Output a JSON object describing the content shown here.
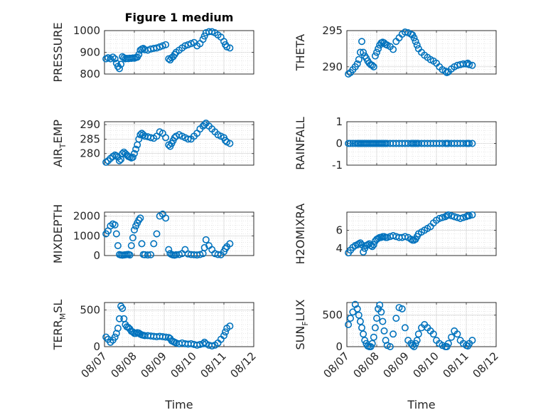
{
  "figure": {
    "title": "Figure 1 medium",
    "marker_color": "#0072BD",
    "x_tick_labels": [
      "08/07",
      "08/08",
      "08/09",
      "08/10",
      "08/11",
      "08/12"
    ],
    "x_axis_label": "Time"
  },
  "chart_data": [
    {
      "type": "scatter",
      "ylabel": "PRESSURE",
      "ylabel_main": "PRESSURE",
      "ylabel_sub": "",
      "ylabel_rest": "",
      "xlim": [
        0,
        5
      ],
      "ylim": [
        800,
        1000
      ],
      "yticks": [
        800,
        900,
        1000
      ],
      "grid": true,
      "minor_grid": true,
      "x_tick_labels_shown": false,
      "x": [
        0.05,
        0.12,
        0.2,
        0.28,
        0.35,
        0.4,
        0.45,
        0.5,
        0.55,
        0.6,
        0.65,
        0.7,
        0.75,
        0.8,
        0.85,
        0.9,
        0.95,
        1.0,
        1.05,
        1.1,
        1.15,
        1.2,
        1.25,
        1.3,
        1.35,
        1.45,
        1.55,
        1.65,
        1.75,
        1.85,
        1.95,
        2.05,
        2.15,
        2.2,
        2.25,
        2.3,
        2.35,
        2.4,
        2.5,
        2.6,
        2.7,
        2.8,
        2.9,
        3.0,
        3.1,
        3.2,
        3.3,
        3.35,
        3.4,
        3.5,
        3.6,
        3.7,
        3.8,
        3.9,
        4.0,
        4.05,
        4.1,
        4.2
      ],
      "y": [
        870,
        875,
        870,
        878,
        870,
        850,
        835,
        825,
        845,
        880,
        875,
        870,
        872,
        871,
        873,
        872,
        874,
        873,
        876,
        878,
        890,
        910,
        915,
        918,
        912,
        910,
        915,
        918,
        920,
        925,
        930,
        935,
        870,
        865,
        875,
        880,
        890,
        900,
        910,
        920,
        930,
        935,
        940,
        945,
        930,
        940,
        960,
        975,
        990,
        995,
        995,
        990,
        980,
        970,
        950,
        935,
        925,
        920
      ]
    },
    {
      "type": "scatter",
      "ylabel": "THETA",
      "ylabel_main": "THETA",
      "ylabel_sub": "",
      "ylabel_rest": "",
      "xlim": [
        0,
        5
      ],
      "ylim": [
        289,
        295
      ],
      "yticks": [
        290,
        295
      ],
      "grid": true,
      "minor_grid": true,
      "x_tick_labels_shown": false,
      "x": [
        0.05,
        0.12,
        0.2,
        0.28,
        0.35,
        0.4,
        0.45,
        0.5,
        0.55,
        0.6,
        0.65,
        0.7,
        0.75,
        0.8,
        0.85,
        0.9,
        0.95,
        1.0,
        1.05,
        1.1,
        1.15,
        1.2,
        1.25,
        1.3,
        1.35,
        1.45,
        1.55,
        1.65,
        1.75,
        1.85,
        1.95,
        2.05,
        2.15,
        2.2,
        2.25,
        2.3,
        2.35,
        2.4,
        2.5,
        2.6,
        2.7,
        2.8,
        2.9,
        3.0,
        3.1,
        3.2,
        3.3,
        3.35,
        3.4,
        3.5,
        3.6,
        3.7,
        3.8,
        3.9,
        4.0,
        4.05,
        4.1,
        4.2
      ],
      "y": [
        289,
        289.2,
        289.6,
        290,
        290.4,
        291,
        292,
        293.5,
        292,
        291.5,
        291.2,
        290.8,
        290.5,
        290.3,
        290.2,
        290,
        291.5,
        292,
        292.5,
        293,
        293.3,
        293.4,
        293.3,
        293.1,
        293,
        292.8,
        292.4,
        293.5,
        294,
        294.5,
        294.8,
        294.7,
        294.5,
        294.4,
        294,
        293.5,
        293,
        292.5,
        292,
        291.6,
        291.3,
        291,
        290.8,
        290.5,
        290,
        289.6,
        289.4,
        289.2,
        289.3,
        289.7,
        290,
        290.2,
        290.3,
        290.4,
        290.4,
        290.5,
        290.3,
        290.2
      ]
    },
    {
      "type": "scatter",
      "ylabel": "AIR_TEMP",
      "ylabel_main": "AIR",
      "ylabel_sub": "T",
      "ylabel_rest": "EMP",
      "xlim": [
        0,
        5
      ],
      "ylim": [
        276,
        291
      ],
      "yticks": [
        280,
        285,
        290
      ],
      "grid": true,
      "minor_grid": true,
      "x_tick_labels_shown": false,
      "x": [
        0.05,
        0.12,
        0.2,
        0.28,
        0.35,
        0.4,
        0.45,
        0.5,
        0.55,
        0.6,
        0.65,
        0.7,
        0.75,
        0.8,
        0.85,
        0.9,
        0.95,
        1.0,
        1.05,
        1.1,
        1.15,
        1.2,
        1.25,
        1.3,
        1.35,
        1.45,
        1.55,
        1.65,
        1.75,
        1.85,
        1.95,
        2.05,
        2.15,
        2.2,
        2.25,
        2.3,
        2.35,
        2.4,
        2.5,
        2.6,
        2.7,
        2.8,
        2.9,
        3.0,
        3.1,
        3.2,
        3.3,
        3.35,
        3.4,
        3.5,
        3.6,
        3.7,
        3.8,
        3.9,
        4.0,
        4.05,
        4.1,
        4.2
      ],
      "y": [
        277,
        277.5,
        278.3,
        279,
        279.5,
        279.2,
        278.8,
        277.5,
        278,
        280,
        280.5,
        280,
        279.5,
        279,
        278.8,
        278.5,
        278.7,
        280,
        281.5,
        283,
        285,
        286.5,
        287,
        286.5,
        286,
        285.8,
        285.5,
        285.3,
        286,
        287.5,
        287,
        285.5,
        283,
        282.5,
        283.5,
        284.5,
        285.5,
        286,
        286.5,
        286,
        285.5,
        285,
        285,
        286,
        287,
        288.5,
        289.5,
        290,
        290.5,
        289.5,
        288.5,
        287.5,
        286.5,
        286,
        285.5,
        284.5,
        284,
        283.5
      ]
    },
    {
      "type": "scatter",
      "ylabel": "RAINFALL",
      "ylabel_main": "RAINFALL",
      "ylabel_sub": "",
      "ylabel_rest": "",
      "xlim": [
        0,
        5
      ],
      "ylim": [
        -1,
        1
      ],
      "yticks": [
        -1,
        0,
        1
      ],
      "grid": true,
      "minor_grid": true,
      "x_tick_labels_shown": false,
      "x": [
        0.05,
        0.12,
        0.2,
        0.28,
        0.35,
        0.4,
        0.45,
        0.5,
        0.55,
        0.6,
        0.65,
        0.7,
        0.75,
        0.8,
        0.85,
        0.9,
        0.95,
        1.0,
        1.05,
        1.1,
        1.15,
        1.2,
        1.25,
        1.3,
        1.35,
        1.45,
        1.55,
        1.65,
        1.75,
        1.85,
        1.95,
        2.05,
        2.15,
        2.2,
        2.25,
        2.3,
        2.35,
        2.4,
        2.5,
        2.6,
        2.7,
        2.8,
        2.9,
        3.0,
        3.1,
        3.2,
        3.3,
        3.35,
        3.4,
        3.5,
        3.6,
        3.7,
        3.8,
        3.9,
        4.0,
        4.05,
        4.1,
        4.2
      ],
      "y": [
        0,
        0,
        0,
        0,
        0,
        0,
        0,
        0,
        0,
        0,
        0,
        0,
        0,
        0,
        0,
        0,
        0,
        0,
        0,
        0,
        0,
        0,
        0,
        0,
        0,
        0,
        0,
        0,
        0,
        0,
        0,
        0,
        0,
        0,
        0,
        0,
        0,
        0,
        0,
        0,
        0,
        0,
        0,
        0,
        0,
        0,
        0,
        0,
        0,
        0,
        0,
        0,
        0,
        0,
        0,
        0,
        0,
        0
      ]
    },
    {
      "type": "scatter",
      "ylabel": "MIXDEPTH",
      "ylabel_main": "MIXDEPTH",
      "ylabel_sub": "",
      "ylabel_rest": "",
      "xlim": [
        0,
        5
      ],
      "ylim": [
        0,
        2200
      ],
      "yticks": [
        0,
        1000,
        2000
      ],
      "grid": true,
      "minor_grid": true,
      "x_tick_labels_shown": false,
      "x": [
        0.05,
        0.12,
        0.2,
        0.28,
        0.35,
        0.4,
        0.45,
        0.5,
        0.55,
        0.6,
        0.65,
        0.7,
        0.75,
        0.8,
        0.85,
        0.9,
        0.95,
        1.0,
        1.05,
        1.1,
        1.15,
        1.2,
        1.25,
        1.3,
        1.35,
        1.45,
        1.55,
        1.65,
        1.75,
        1.85,
        1.95,
        2.05,
        2.15,
        2.2,
        2.25,
        2.3,
        2.35,
        2.4,
        2.5,
        2.6,
        2.7,
        2.8,
        2.9,
        3.0,
        3.1,
        3.2,
        3.3,
        3.35,
        3.4,
        3.5,
        3.6,
        3.7,
        3.8,
        3.9,
        4.0,
        4.05,
        4.1,
        4.2
      ],
      "y": [
        1100,
        1250,
        1500,
        1600,
        1550,
        1100,
        500,
        50,
        30,
        20,
        30,
        40,
        50,
        60,
        30,
        500,
        900,
        1300,
        1500,
        1650,
        1800,
        1900,
        600,
        50,
        40,
        30,
        40,
        600,
        1100,
        2000,
        2100,
        1900,
        300,
        100,
        50,
        30,
        20,
        40,
        50,
        100,
        300,
        80,
        50,
        40,
        30,
        50,
        100,
        400,
        800,
        500,
        300,
        100,
        50,
        40,
        200,
        350,
        450,
        600
      ]
    },
    {
      "type": "scatter",
      "ylabel": "H2OMIXRA",
      "ylabel_main": "H2OMIXRA",
      "ylabel_sub": "",
      "ylabel_rest": "",
      "xlim": [
        0,
        5
      ],
      "ylim": [
        3.2,
        8
      ],
      "yticks": [
        4,
        6
      ],
      "grid": true,
      "minor_grid": true,
      "x_tick_labels_shown": false,
      "x": [
        0.05,
        0.12,
        0.2,
        0.28,
        0.35,
        0.4,
        0.45,
        0.5,
        0.55,
        0.6,
        0.65,
        0.7,
        0.75,
        0.8,
        0.85,
        0.9,
        0.95,
        1.0,
        1.05,
        1.1,
        1.15,
        1.2,
        1.25,
        1.3,
        1.35,
        1.45,
        1.55,
        1.65,
        1.75,
        1.85,
        1.95,
        2.05,
        2.15,
        2.2,
        2.25,
        2.3,
        2.35,
        2.4,
        2.5,
        2.6,
        2.7,
        2.8,
        2.9,
        3.0,
        3.1,
        3.2,
        3.3,
        3.35,
        3.4,
        3.5,
        3.6,
        3.7,
        3.8,
        3.9,
        4.0,
        4.05,
        4.1,
        4.2
      ],
      "y": [
        3.5,
        3.8,
        4.1,
        4.3,
        4.4,
        4.5,
        4.6,
        4.4,
        3.6,
        4.0,
        4.3,
        4.4,
        4.5,
        4.3,
        4.2,
        4.4,
        4.8,
        5.0,
        5.1,
        5.2,
        5.2,
        5.3,
        5.3,
        5.2,
        5.2,
        5.3,
        5.4,
        5.3,
        5.2,
        5.2,
        5.3,
        5.2,
        5.0,
        4.9,
        4.9,
        5.0,
        5.3,
        5.6,
        5.8,
        6.0,
        6.2,
        6.4,
        6.8,
        7.1,
        7.3,
        7.4,
        7.5,
        7.6,
        7.7,
        7.6,
        7.5,
        7.4,
        7.3,
        7.4,
        7.5,
        7.6,
        7.6,
        7.7
      ]
    },
    {
      "type": "scatter",
      "ylabel": "TERR_MSL",
      "ylabel_main": "TERR",
      "ylabel_sub": "M",
      "ylabel_rest": "SL",
      "xlim": [
        0,
        5
      ],
      "ylim": [
        0,
        600
      ],
      "yticks": [
        0,
        500
      ],
      "grid": true,
      "minor_grid": true,
      "x_tick_labels_shown": true,
      "x": [
        0.05,
        0.12,
        0.2,
        0.28,
        0.35,
        0.4,
        0.45,
        0.5,
        0.55,
        0.6,
        0.65,
        0.7,
        0.75,
        0.8,
        0.85,
        0.9,
        0.95,
        1.0,
        1.05,
        1.1,
        1.15,
        1.2,
        1.25,
        1.3,
        1.35,
        1.45,
        1.55,
        1.65,
        1.75,
        1.85,
        1.95,
        2.05,
        2.15,
        2.2,
        2.25,
        2.3,
        2.35,
        2.4,
        2.5,
        2.6,
        2.7,
        2.8,
        2.9,
        3.0,
        3.1,
        3.2,
        3.3,
        3.35,
        3.4,
        3.5,
        3.6,
        3.7,
        3.8,
        3.9,
        4.0,
        4.05,
        4.1,
        4.2
      ],
      "y": [
        130,
        100,
        60,
        90,
        130,
        180,
        250,
        380,
        550,
        520,
        380,
        300,
        270,
        260,
        240,
        210,
        200,
        180,
        180,
        190,
        185,
        170,
        160,
        155,
        150,
        150,
        145,
        140,
        135,
        140,
        135,
        130,
        125,
        110,
        80,
        70,
        60,
        50,
        40,
        50,
        40,
        35,
        40,
        30,
        20,
        30,
        40,
        60,
        40,
        20,
        10,
        20,
        50,
        100,
        150,
        200,
        250,
        280
      ]
    },
    {
      "type": "scatter",
      "ylabel": "SUN_FLUX",
      "ylabel_main": "SUN",
      "ylabel_sub": "F",
      "ylabel_rest": "LUX",
      "xlim": [
        0,
        5
      ],
      "ylim": [
        0,
        700
      ],
      "yticks": [
        0,
        500
      ],
      "grid": true,
      "minor_grid": true,
      "x_tick_labels_shown": true,
      "x": [
        0.05,
        0.12,
        0.2,
        0.28,
        0.35,
        0.4,
        0.45,
        0.5,
        0.55,
        0.6,
        0.65,
        0.7,
        0.75,
        0.8,
        0.85,
        0.9,
        0.95,
        1.0,
        1.05,
        1.1,
        1.15,
        1.2,
        1.25,
        1.3,
        1.35,
        1.45,
        1.55,
        1.65,
        1.75,
        1.85,
        1.95,
        2.05,
        2.15,
        2.2,
        2.25,
        2.3,
        2.35,
        2.4,
        2.5,
        2.6,
        2.7,
        2.8,
        2.9,
        3.0,
        3.1,
        3.2,
        3.3,
        3.35,
        3.4,
        3.5,
        3.6,
        3.7,
        3.8,
        3.9,
        4.0,
        4.05,
        4.1,
        4.2
      ],
      "y": [
        350,
        450,
        550,
        670,
        600,
        500,
        400,
        300,
        200,
        100,
        50,
        10,
        0,
        0,
        50,
        150,
        300,
        450,
        600,
        660,
        550,
        400,
        250,
        100,
        20,
        0,
        200,
        450,
        620,
        600,
        300,
        100,
        50,
        20,
        0,
        50,
        100,
        200,
        300,
        350,
        300,
        250,
        200,
        100,
        50,
        20,
        0,
        0,
        50,
        150,
        250,
        200,
        100,
        50,
        20,
        10,
        50,
        100
      ]
    }
  ]
}
